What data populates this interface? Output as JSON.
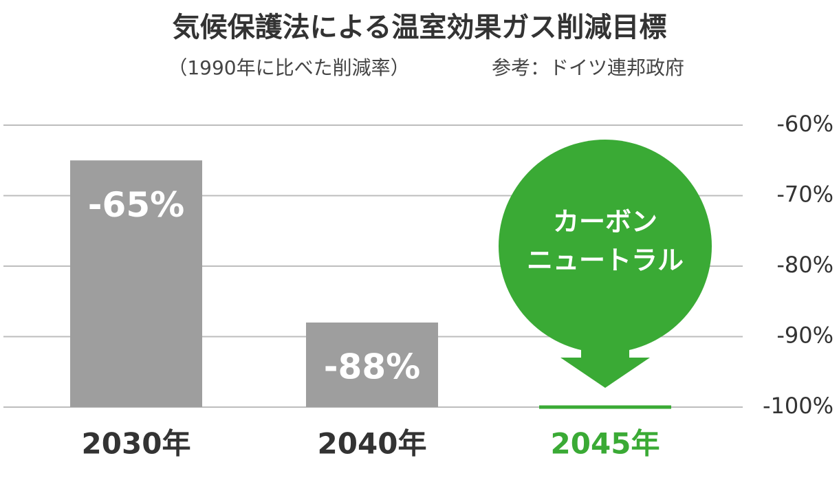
{
  "chart_data": {
    "type": "bar",
    "title": "気候保護法による温室効果ガス削減目標",
    "subtitle": "（1990年に比べた削減率）",
    "source": "参考：ドイツ連邦政府",
    "categories": [
      "2030年",
      "2040年",
      "2045年"
    ],
    "values": [
      -65,
      -88,
      -100
    ],
    "value_labels": [
      "-65%",
      "-88%",
      null
    ],
    "colors": [
      "#9e9e9e",
      "#9e9e9e",
      "#3aaa35"
    ],
    "label_colors": [
      "#333333",
      "#333333",
      "#3aaa35"
    ],
    "annotation": [
      "カーボン",
      "ニュートラル"
    ],
    "annotation_color": "#3aaa35",
    "ylim": [
      -100,
      -60
    ],
    "yticks": [
      {
        "value": -60,
        "label": "-60%"
      },
      {
        "value": -70,
        "label": "-70%"
      },
      {
        "value": -80,
        "label": "-80%"
      },
      {
        "value": -90,
        "label": "-90%"
      },
      {
        "value": -100,
        "label": "-100%"
      }
    ],
    "grid": true
  }
}
